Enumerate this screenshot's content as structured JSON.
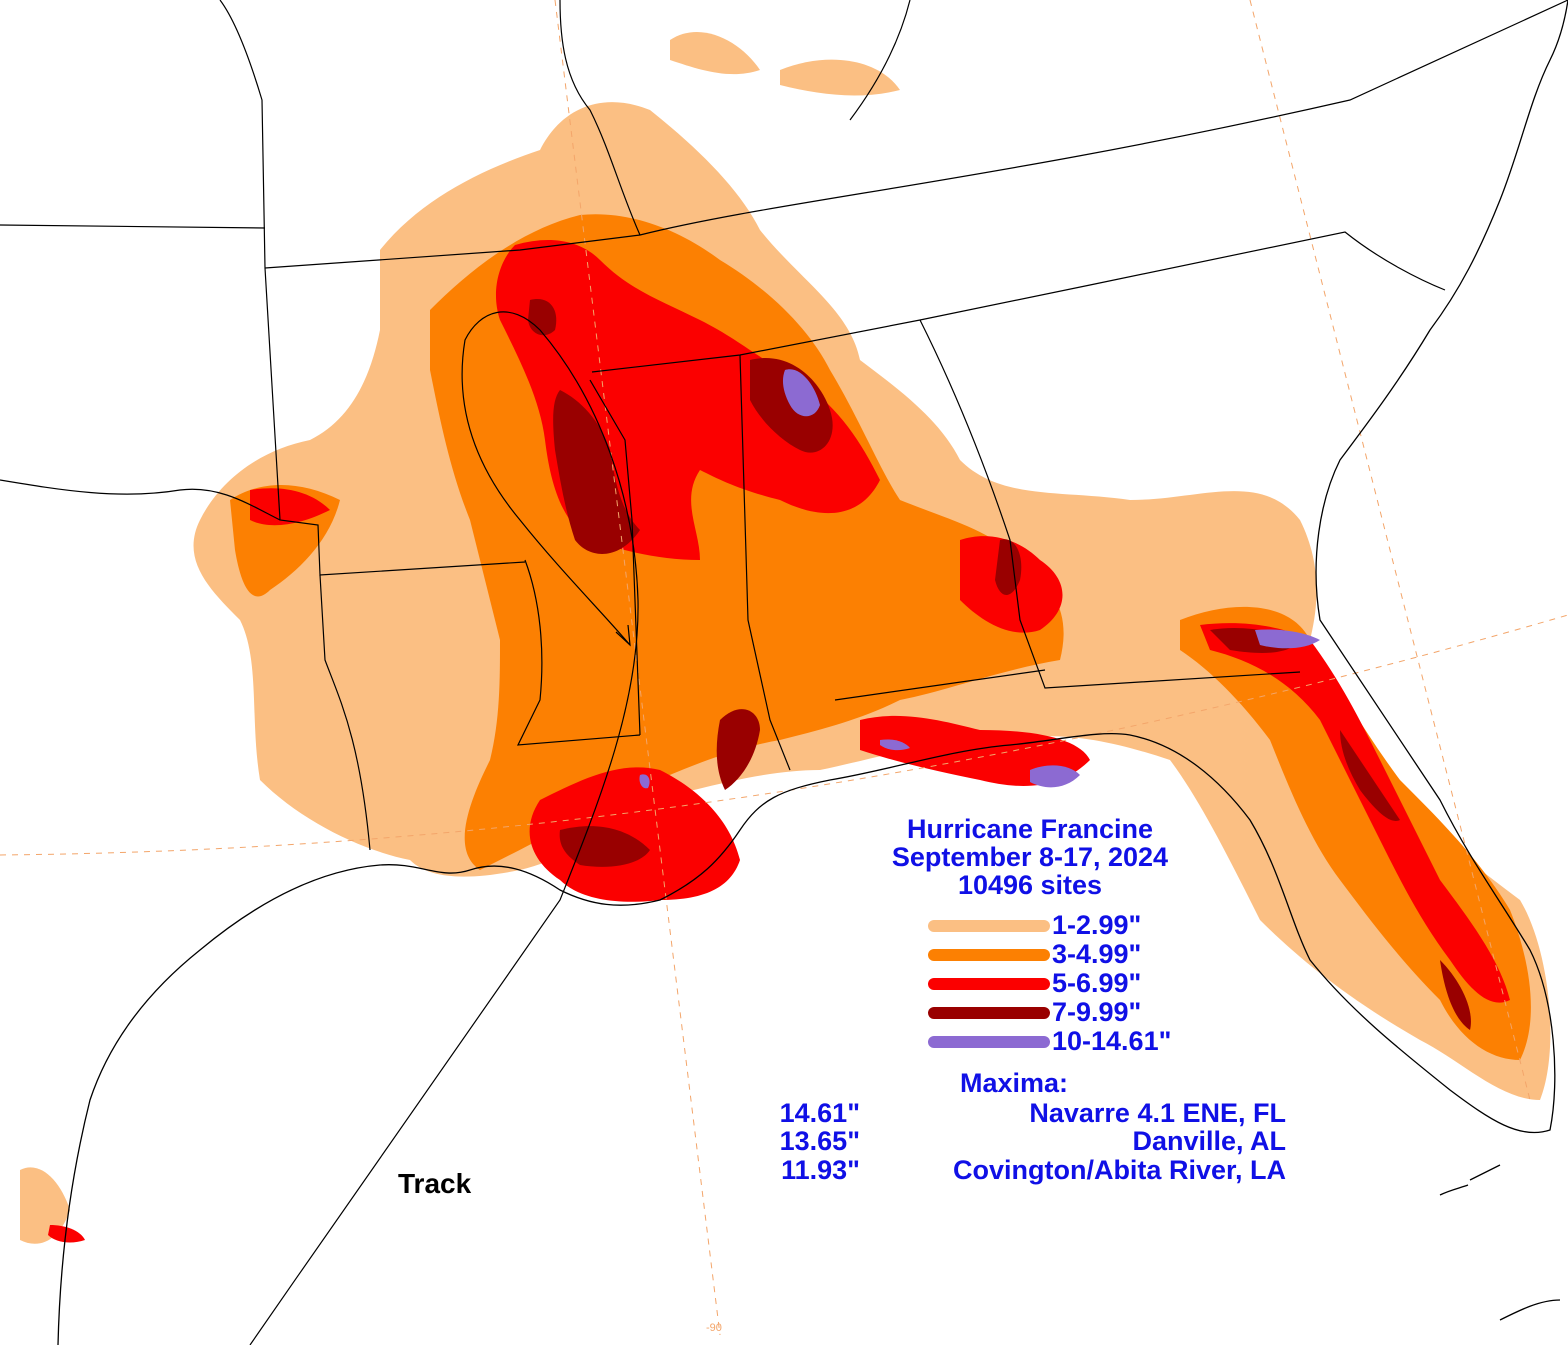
{
  "title": {
    "line1": "Hurricane Francine",
    "line2": "September 8-17, 2024",
    "line3": "10496 sites"
  },
  "legend": [
    {
      "label": "1-2.99\"",
      "color": "#fbbf83"
    },
    {
      "label": "3-4.99\"",
      "color": "#fc8002"
    },
    {
      "label": "5-6.99\"",
      "color": "#fb0000"
    },
    {
      "label": "7-9.99\"",
      "color": "#990000"
    },
    {
      "label": "10-14.61\"",
      "color": "#8c6ad2"
    }
  ],
  "maxima": {
    "heading": "Maxima:",
    "entries": [
      {
        "value": "14.61\"",
        "site": "Navarre 4.1 ENE, FL"
      },
      {
        "value": "13.65\"",
        "site": "Danville, AL"
      },
      {
        "value": "11.93\"",
        "site": "Covington/Abita River, LA"
      }
    ]
  },
  "track_label": "Track",
  "grid_label": "-90",
  "colors": {
    "text": "#1010e6",
    "gridline": "#f3a56a",
    "boundary": "#000000"
  }
}
